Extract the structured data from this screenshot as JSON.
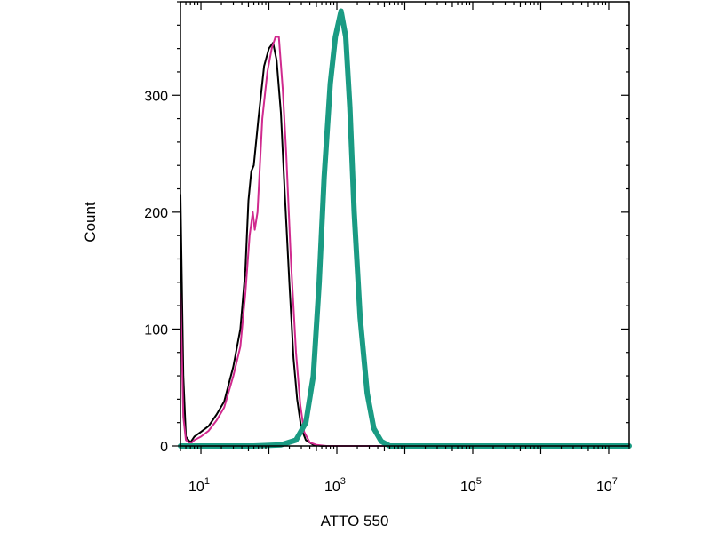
{
  "chart_data": {
    "type": "line",
    "xlabel": "ATTO 550",
    "ylabel": "Count",
    "x_scale": "log",
    "xlim": [
      5,
      20000000
    ],
    "ylim": [
      0,
      380
    ],
    "x_ticks": [
      {
        "base": "10",
        "exp": "1",
        "value": 10
      },
      {
        "base": "10",
        "exp": "3",
        "value": 1000
      },
      {
        "base": "10",
        "exp": "5",
        "value": 100000
      },
      {
        "base": "10",
        "exp": "7",
        "value": 10000000
      }
    ],
    "y_ticks": [
      {
        "label": "0",
        "value": 0
      },
      {
        "label": "100",
        "value": 100
      },
      {
        "label": "200",
        "value": 200
      },
      {
        "label": "300",
        "value": 300
      }
    ],
    "grid": false,
    "legend": "none",
    "series": [
      {
        "color": "#000000",
        "width": 2,
        "points": [
          [
            5,
            215
          ],
          [
            5.5,
            60
          ],
          [
            6,
            8
          ],
          [
            7,
            3
          ],
          [
            8,
            8
          ],
          [
            10,
            12
          ],
          [
            13,
            17
          ],
          [
            17,
            27
          ],
          [
            22,
            38
          ],
          [
            30,
            68
          ],
          [
            38,
            100
          ],
          [
            45,
            150
          ],
          [
            50,
            210
          ],
          [
            55,
            235
          ],
          [
            60,
            240
          ],
          [
            70,
            280
          ],
          [
            85,
            325
          ],
          [
            100,
            340
          ],
          [
            115,
            345
          ],
          [
            130,
            330
          ],
          [
            150,
            285
          ],
          [
            170,
            220
          ],
          [
            200,
            140
          ],
          [
            230,
            75
          ],
          [
            260,
            40
          ],
          [
            300,
            15
          ],
          [
            350,
            5
          ],
          [
            450,
            1
          ],
          [
            600,
            0
          ],
          [
            20000000,
            0
          ]
        ]
      },
      {
        "color": "#d02a8e",
        "width": 2,
        "points": [
          [
            5,
            130
          ],
          [
            5.5,
            25
          ],
          [
            6,
            5
          ],
          [
            7,
            2
          ],
          [
            8,
            5
          ],
          [
            10,
            8
          ],
          [
            13,
            13
          ],
          [
            17,
            22
          ],
          [
            22,
            33
          ],
          [
            30,
            60
          ],
          [
            38,
            85
          ],
          [
            45,
            130
          ],
          [
            52,
            180
          ],
          [
            58,
            200
          ],
          [
            62,
            185
          ],
          [
            68,
            200
          ],
          [
            80,
            280
          ],
          [
            95,
            320
          ],
          [
            110,
            340
          ],
          [
            125,
            350
          ],
          [
            140,
            350
          ],
          [
            160,
            305
          ],
          [
            180,
            250
          ],
          [
            210,
            160
          ],
          [
            250,
            80
          ],
          [
            290,
            35
          ],
          [
            330,
            12
          ],
          [
            400,
            3
          ],
          [
            500,
            1
          ],
          [
            700,
            0
          ],
          [
            20000000,
            0
          ]
        ]
      },
      {
        "color": "#1a9b83",
        "width": 6,
        "points": [
          [
            5,
            0
          ],
          [
            60,
            0
          ],
          [
            150,
            1
          ],
          [
            250,
            5
          ],
          [
            350,
            20
          ],
          [
            450,
            60
          ],
          [
            550,
            140
          ],
          [
            650,
            230
          ],
          [
            800,
            310
          ],
          [
            950,
            350
          ],
          [
            1150,
            372
          ],
          [
            1350,
            350
          ],
          [
            1550,
            290
          ],
          [
            1800,
            200
          ],
          [
            2200,
            110
          ],
          [
            2800,
            45
          ],
          [
            3500,
            15
          ],
          [
            4500,
            4
          ],
          [
            6000,
            0
          ],
          [
            20000000,
            0
          ]
        ]
      }
    ]
  }
}
